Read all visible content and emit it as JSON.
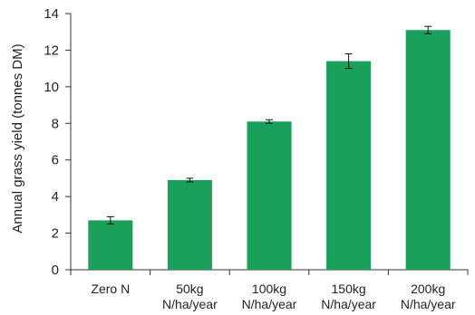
{
  "chart_data": {
    "type": "bar",
    "categories": [
      [
        "Zero N"
      ],
      [
        "50kg",
        "N/ha/year"
      ],
      [
        "100kg",
        "N/ha/year"
      ],
      [
        "150kg",
        "N/ha/year"
      ],
      [
        "200kg",
        "N/ha/year"
      ]
    ],
    "values": [
      2.7,
      4.9,
      8.1,
      11.4,
      13.1
    ],
    "errors": [
      0.2,
      0.1,
      0.1,
      0.4,
      0.2
    ],
    "xlabel": "",
    "ylabel": "Annual grass yield (tonnes DM)",
    "ylim": [
      0,
      14
    ],
    "yticks": [
      0,
      2,
      4,
      6,
      8,
      10,
      12,
      14
    ],
    "bar_color": "#1aa05a",
    "grid": false
  }
}
